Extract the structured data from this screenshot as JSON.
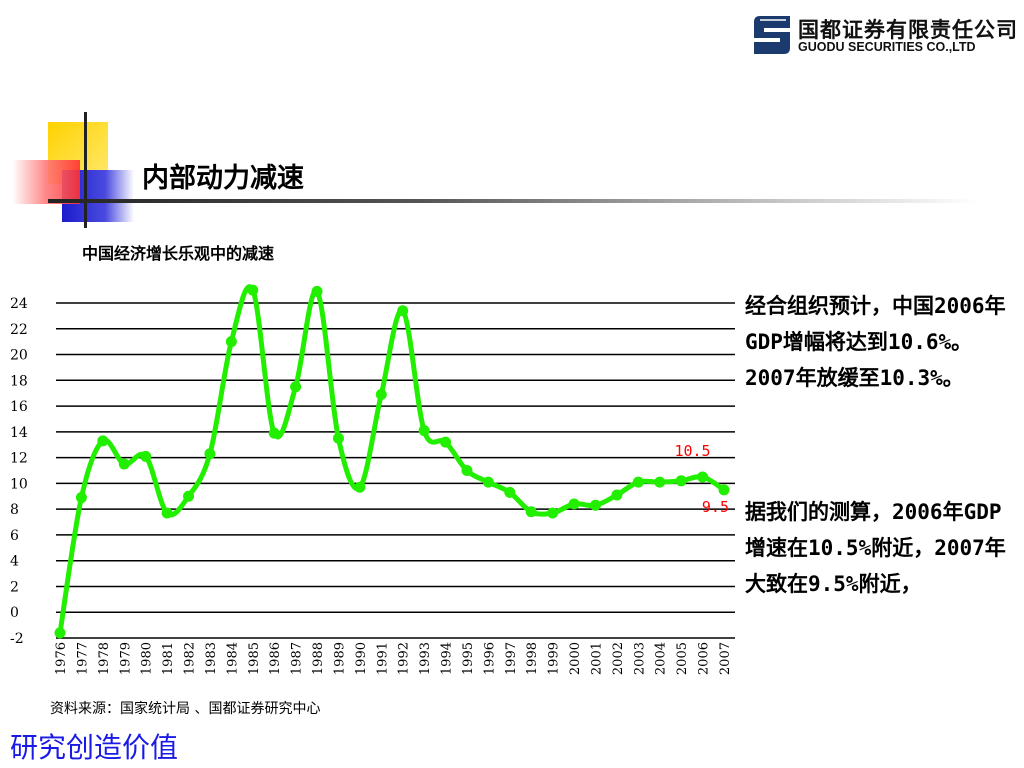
{
  "company": {
    "name_cn": "国都证券有限责任公司",
    "name_en": "GUODU SECURITIES CO.,LTD"
  },
  "slide": {
    "title": "内部动力减速",
    "chart_title": "中国经济增长乐观中的减速",
    "note_1": "经合组织预计，中国2006年GDP增幅将达到10.6%。2007年放缓至10.3%。",
    "note_2": "据我们的测算，2006年GDP增速在10.5%附近，2007年大致在9.5%附近，",
    "source": "资料来源：国家统计局 、国都证券研究中心",
    "slogan": "研究创造价值"
  },
  "colors": {
    "line": "#22ee00",
    "annotation": "#ff0000",
    "slogan": "#1a1ae6",
    "deco_yellow": "#ffcc00",
    "deco_blue": "#2222cc",
    "deco_red": "#ff4444"
  },
  "chart_data": {
    "type": "line",
    "x": [
      "1976",
      "1977",
      "1978",
      "1979",
      "1980",
      "1981",
      "1982",
      "1983",
      "1984",
      "1985",
      "1986",
      "1987",
      "1988",
      "1989",
      "1990",
      "1991",
      "1992",
      "1993",
      "1994",
      "1995",
      "1996",
      "1997",
      "1998",
      "1999",
      "2000",
      "2001",
      "2002",
      "2003",
      "2004",
      "2005",
      "2006",
      "2007"
    ],
    "series": [
      {
        "values": [
          -1.6,
          8.9,
          13.3,
          11.5,
          12.1,
          7.7,
          9.0,
          12.3,
          21.0,
          25.0,
          13.9,
          17.5,
          24.9,
          13.5,
          9.7,
          16.9,
          23.4,
          14.1,
          13.2,
          11.0,
          10.1,
          9.3,
          7.8,
          7.7,
          8.4,
          8.3,
          9.1,
          10.1,
          10.1,
          10.2,
          10.5,
          9.5
        ]
      }
    ],
    "ylim": [
      -2,
      24
    ],
    "yticks": [
      -2,
      0,
      2,
      4,
      6,
      8,
      10,
      12,
      14,
      16,
      18,
      20,
      22,
      24
    ],
    "grid": true,
    "annotations": [
      {
        "text": "10.5",
        "x": "2006",
        "y": 10.5
      },
      {
        "text": "9.5",
        "x": "2007",
        "y": 9.5
      }
    ]
  }
}
